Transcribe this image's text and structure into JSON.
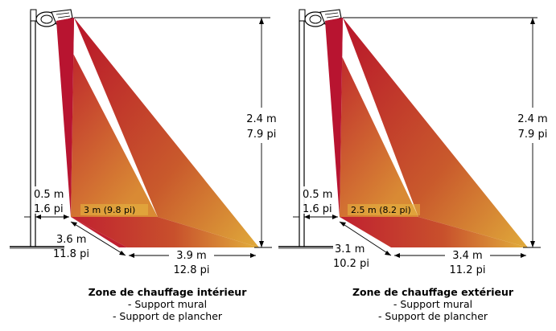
{
  "colors": {
    "cone_dark": "#b8102a",
    "cone_mid": "#c8402a",
    "cone_light": "#e0a838",
    "line": "#000000"
  },
  "diagrams": [
    {
      "height_m": "2.4 m",
      "height_pi": "7.9 pi",
      "offset_m": "0.5 m",
      "offset_pi": "1.6 pi",
      "width_label": "3 m (9.8 pi)",
      "depth_m": "3.6 m",
      "depth_pi": "11.8 pi",
      "front_m": "3.9 m",
      "front_pi": "12.8 pi",
      "caption_title": "Zone de chauffage intérieur",
      "caption_line1": "- Support mural",
      "caption_line2": "- Support de plancher"
    },
    {
      "height_m": "2.4 m",
      "height_pi": "7.9 pi",
      "offset_m": "0.5 m",
      "offset_pi": "1.6 pi",
      "width_label": "2.5 m (8.2 pi)",
      "depth_m": "3.1 m",
      "depth_pi": "10.2 pi",
      "front_m": "3.4 m",
      "front_pi": "11.2 pi",
      "caption_title": "Zone de chauffage extérieur",
      "caption_line1": "- Support mural",
      "caption_line2": "- Support de plancher"
    }
  ]
}
